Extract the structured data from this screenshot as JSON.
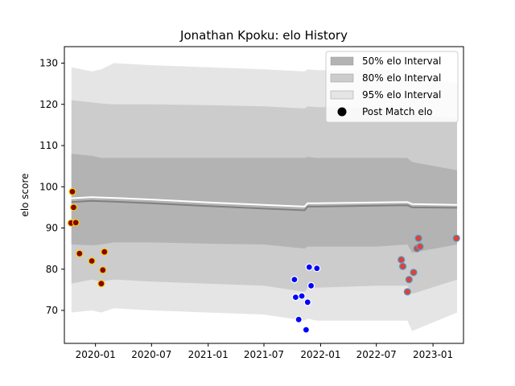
{
  "chart_data": {
    "type": "line",
    "title": "Jonathan Kpoku: elo History",
    "xlabel": "",
    "ylabel": "elo score",
    "x_tick_labels": [
      "2020-01",
      "2020-07",
      "2021-01",
      "2021-07",
      "2022-01",
      "2022-07",
      "2023-01"
    ],
    "x_ticks": [
      "2020-01-01",
      "2020-07-01",
      "2021-01-01",
      "2021-07-01",
      "2022-01-01",
      "2022-07-01",
      "2023-01-01"
    ],
    "xlim": [
      "2019-09-22",
      "2023-04-10"
    ],
    "ylim": [
      62,
      134
    ],
    "y_ticks": [
      70,
      80,
      90,
      100,
      110,
      120,
      130
    ],
    "legend_location": "upper right",
    "legend": [
      {
        "label": "50% elo Interval",
        "kind": "band",
        "color": "#b3b3b3"
      },
      {
        "label": "80% elo Interval",
        "kind": "band",
        "color": "#cccccc"
      },
      {
        "label": "95% elo Interval",
        "kind": "band",
        "color": "#e5e5e5"
      },
      {
        "label": "Post Match elo",
        "kind": "marker",
        "color": "#000000"
      }
    ],
    "bands": {
      "dates": [
        "2019-10-15",
        "2019-12-20",
        "2020-01-20",
        "2020-03-01",
        "2020-07-01",
        "2021-01-01",
        "2021-07-01",
        "2021-11-10",
        "2021-11-20",
        "2021-12-20",
        "2022-07-01",
        "2022-10-10",
        "2022-10-25",
        "2023-03-20"
      ],
      "p95_upper": [
        129.0,
        128.0,
        128.5,
        130.0,
        129.5,
        129.0,
        128.5,
        128.0,
        128.5,
        128.3,
        128.3,
        128.5,
        127.0,
        125.0
      ],
      "p80_upper": [
        121.0,
        120.5,
        120.2,
        120.0,
        120.0,
        119.8,
        119.5,
        119.0,
        119.5,
        119.3,
        119.2,
        119.0,
        118.0,
        116.5
      ],
      "p50_upper": [
        108.0,
        107.5,
        107.0,
        107.0,
        107.0,
        107.0,
        107.0,
        107.0,
        107.2,
        107.0,
        107.0,
        107.0,
        106.0,
        104.0
      ],
      "p50_lower": [
        86.0,
        85.8,
        86.0,
        86.5,
        86.5,
        86.2,
        86.0,
        85.0,
        85.5,
        85.5,
        85.5,
        86.0,
        84.0,
        86.0
      ],
      "p80_lower": [
        76.5,
        77.5,
        77.0,
        77.5,
        77.0,
        76.5,
        76.0,
        74.5,
        75.5,
        75.5,
        76.0,
        76.0,
        74.0,
        77.5
      ],
      "p95_lower": [
        69.5,
        70.0,
        69.5,
        70.5,
        70.0,
        69.5,
        69.0,
        67.5,
        68.0,
        67.5,
        67.5,
        67.5,
        65.0,
        69.5
      ]
    },
    "series": [
      {
        "line": "median",
        "x": [
          "2019-10-15",
          "2019-12-20",
          "2020-01-20",
          "2020-03-01",
          "2020-07-01",
          "2021-01-01",
          "2021-07-01",
          "2021-11-10",
          "2021-11-20",
          "2021-12-20",
          "2022-07-01",
          "2022-10-10",
          "2022-10-25",
          "2023-03-20"
        ],
        "values": [
          96.3,
          96.6,
          96.5,
          96.4,
          96.0,
          95.3,
          94.7,
          94.3,
          95.2,
          95.2,
          95.4,
          95.5,
          95.0,
          94.9
        ]
      },
      {
        "line": "mean",
        "x": [
          "2019-10-15",
          "2019-12-20",
          "2020-01-20",
          "2020-03-01",
          "2020-07-01",
          "2021-01-01",
          "2021-07-01",
          "2021-11-10",
          "2021-11-20",
          "2021-12-20",
          "2022-07-01",
          "2022-10-10",
          "2022-10-25",
          "2023-03-20"
        ],
        "values": [
          97.2,
          97.5,
          97.4,
          97.3,
          96.9,
          96.2,
          95.6,
          95.2,
          96.0,
          96.0,
          96.2,
          96.3,
          95.8,
          95.6
        ]
      },
      {
        "name": "Post Match elo",
        "points": [
          {
            "x": "2019-10-18",
            "y": 98.8,
            "color": "#8b0000",
            "edge": "#f5d000"
          },
          {
            "x": "2019-10-22",
            "y": 95.0,
            "color": "#8b0000",
            "edge": "#f5d000"
          },
          {
            "x": "2019-10-14",
            "y": 91.2,
            "color": "#8b0000",
            "edge": "#f5d000"
          },
          {
            "x": "2019-10-29",
            "y": 91.3,
            "color": "#8b0000",
            "edge": "#f5d000"
          },
          {
            "x": "2019-11-10",
            "y": 83.8,
            "color": "#8b0000",
            "edge": "#f5d000"
          },
          {
            "x": "2019-12-20",
            "y": 82.0,
            "color": "#8b0000",
            "edge": "#f5d000"
          },
          {
            "x": "2020-01-20",
            "y": 76.5,
            "color": "#8b0000",
            "edge": "#f5d000"
          },
          {
            "x": "2020-01-25",
            "y": 79.8,
            "color": "#8b0000",
            "edge": "#f5d000"
          },
          {
            "x": "2020-01-30",
            "y": 84.2,
            "color": "#8b0000",
            "edge": "#f5d000"
          },
          {
            "x": "2021-10-08",
            "y": 77.5,
            "color": "#0000ff",
            "edge": "#ffffff"
          },
          {
            "x": "2021-10-12",
            "y": 73.2,
            "color": "#0000ff",
            "edge": "#ffffff"
          },
          {
            "x": "2021-10-22",
            "y": 67.8,
            "color": "#0000ff",
            "edge": "#ffffff"
          },
          {
            "x": "2021-11-01",
            "y": 73.5,
            "color": "#0000ff",
            "edge": "#ffffff"
          },
          {
            "x": "2021-11-15",
            "y": 65.3,
            "color": "#0000ff",
            "edge": "#ffffff"
          },
          {
            "x": "2021-11-20",
            "y": 72.0,
            "color": "#0000ff",
            "edge": "#ffffff"
          },
          {
            "x": "2021-11-25",
            "y": 80.5,
            "color": "#0000ff",
            "edge": "#ffffff"
          },
          {
            "x": "2021-12-01",
            "y": 76.0,
            "color": "#0000ff",
            "edge": "#ffffff"
          },
          {
            "x": "2021-12-20",
            "y": 80.2,
            "color": "#0000ff",
            "edge": "#ffffff"
          },
          {
            "x": "2022-09-20",
            "y": 82.3,
            "color": "#e0403a",
            "edge": "#4f9ec4"
          },
          {
            "x": "2022-09-25",
            "y": 80.7,
            "color": "#e0403a",
            "edge": "#4f9ec4"
          },
          {
            "x": "2022-10-10",
            "y": 74.5,
            "color": "#e0403a",
            "edge": "#4f9ec4"
          },
          {
            "x": "2022-10-15",
            "y": 77.5,
            "color": "#e0403a",
            "edge": "#4f9ec4"
          },
          {
            "x": "2022-10-30",
            "y": 79.2,
            "color": "#e0403a",
            "edge": "#4f9ec4"
          },
          {
            "x": "2022-11-10",
            "y": 85.0,
            "color": "#e0403a",
            "edge": "#4f9ec4"
          },
          {
            "x": "2022-11-15",
            "y": 87.5,
            "color": "#e0403a",
            "edge": "#4f9ec4"
          },
          {
            "x": "2022-11-20",
            "y": 85.5,
            "color": "#e0403a",
            "edge": "#4f9ec4"
          },
          {
            "x": "2023-03-18",
            "y": 87.5,
            "color": "#e0403a",
            "edge": "#4f9ec4"
          }
        ]
      }
    ],
    "colors": {
      "band_95": "#e5e5e5",
      "band_80": "#cccccc",
      "band_50": "#b3b3b3",
      "median_line": "#808080",
      "mean_line": "#ffffff"
    }
  }
}
